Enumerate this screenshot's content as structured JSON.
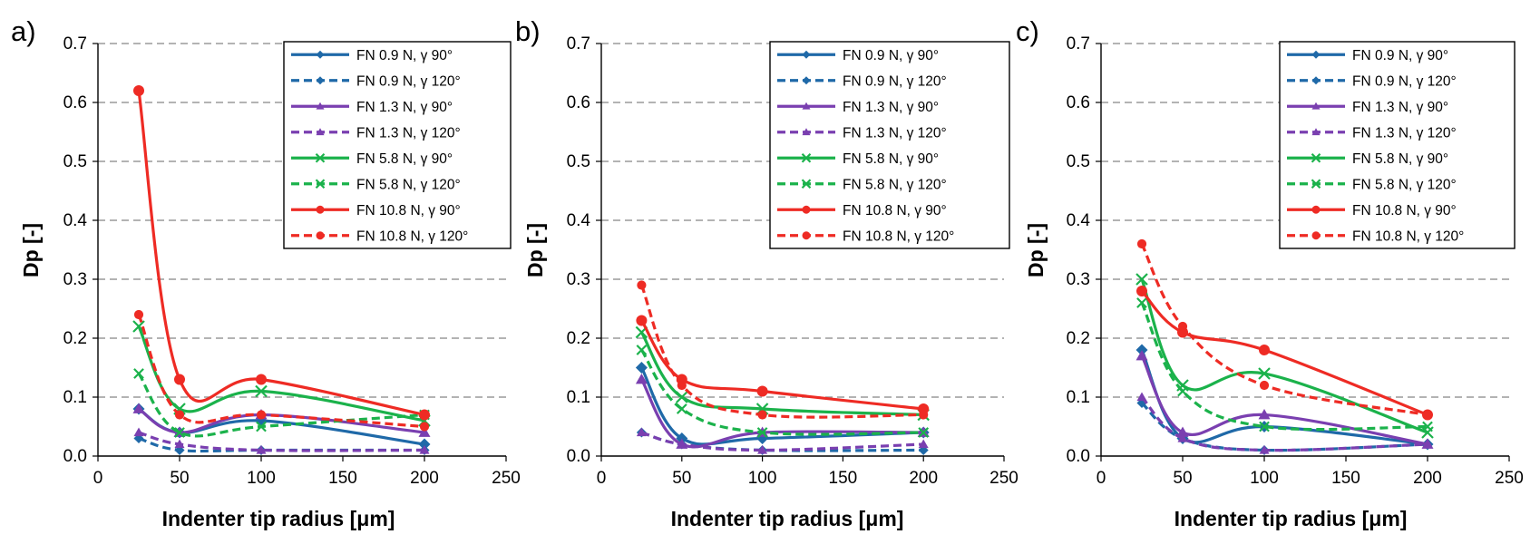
{
  "styles": {
    "FN 0.9 N": {
      "color": "#1f69a8",
      "marker": "diamond"
    },
    "FN 1.3 N": {
      "color": "#7a3fb0",
      "marker": "triangle"
    },
    "FN 5.8 N": {
      "color": "#1bb24b",
      "marker": "x"
    },
    "FN 10.8 N": {
      "color": "#ee2b24",
      "marker": "circle"
    }
  },
  "chart_data": [
    {
      "type": "line",
      "panel_label": "a)",
      "xlabel": "Indenter  tip radius [μm]",
      "ylabel": "Dp [-]",
      "xlim": [
        0,
        250
      ],
      "ylim": [
        0,
        0.7
      ],
      "xticks": [
        "0",
        "50",
        "100",
        "150",
        "200",
        "250"
      ],
      "yticks": [
        "0.0",
        "0.1",
        "0.2",
        "0.3",
        "0.4",
        "0.5",
        "0.6",
        "0.7"
      ],
      "grid": "horizontal dashed",
      "legend_position": "top-right",
      "x": [
        25,
        50,
        100,
        200
      ],
      "series": [
        {
          "name": "FN 0.9 N, γ 90°",
          "force": "FN 0.9 N",
          "dashed": false,
          "values": [
            0.08,
            0.04,
            0.06,
            0.02
          ]
        },
        {
          "name": "FN 0.9 N, γ 120°",
          "force": "FN 0.9 N",
          "dashed": true,
          "values": [
            0.03,
            0.01,
            0.01,
            0.01
          ]
        },
        {
          "name": "FN 1.3 N, γ 90°",
          "force": "FN 1.3 N",
          "dashed": false,
          "values": [
            0.08,
            0.04,
            0.07,
            0.04
          ]
        },
        {
          "name": "FN 1.3 N, γ 120°",
          "force": "FN 1.3 N",
          "dashed": true,
          "values": [
            0.04,
            0.02,
            0.01,
            0.01
          ]
        },
        {
          "name": "FN 5.8 N, γ 90°",
          "force": "FN 5.8 N",
          "dashed": false,
          "values": [
            0.22,
            0.08,
            0.11,
            0.06
          ]
        },
        {
          "name": "FN 5.8 N, γ 120°",
          "force": "FN 5.8 N",
          "dashed": true,
          "values": [
            0.14,
            0.04,
            0.05,
            0.07
          ]
        },
        {
          "name": "FN 10.8 N, γ 90°",
          "force": "FN 10.8 N",
          "dashed": false,
          "values": [
            0.62,
            0.13,
            0.13,
            0.07
          ]
        },
        {
          "name": "FN 10.8 N, γ 120°",
          "force": "FN 10.8 N",
          "dashed": true,
          "values": [
            0.24,
            0.07,
            0.07,
            0.05
          ]
        }
      ]
    },
    {
      "type": "line",
      "panel_label": "b)",
      "xlabel": "Indenter  tip radius [μm]",
      "ylabel": "Dp [-]",
      "xlim": [
        0,
        250
      ],
      "ylim": [
        0,
        0.7
      ],
      "xticks": [
        "0",
        "50",
        "100",
        "150",
        "200",
        "250"
      ],
      "yticks": [
        "0.0",
        "0.1",
        "0.2",
        "0.3",
        "0.4",
        "0.5",
        "0.6",
        "0.7"
      ],
      "grid": "horizontal dashed",
      "legend_position": "top-right",
      "x": [
        25,
        50,
        100,
        200
      ],
      "series": [
        {
          "name": "FN 0.9 N, γ 90°",
          "force": "FN 0.9 N",
          "dashed": false,
          "values": [
            0.15,
            0.03,
            0.03,
            0.04
          ]
        },
        {
          "name": "FN 0.9 N, γ 120°",
          "force": "FN 0.9 N",
          "dashed": true,
          "values": [
            0.04,
            0.02,
            0.01,
            0.01
          ]
        },
        {
          "name": "FN 1.3 N, γ 90°",
          "force": "FN 1.3 N",
          "dashed": false,
          "values": [
            0.13,
            0.02,
            0.04,
            0.04
          ]
        },
        {
          "name": "FN 1.3 N, γ 120°",
          "force": "FN 1.3 N",
          "dashed": true,
          "values": [
            0.04,
            0.02,
            0.01,
            0.02
          ]
        },
        {
          "name": "FN 5.8 N, γ 90°",
          "force": "FN 5.8 N",
          "dashed": false,
          "values": [
            0.21,
            0.1,
            0.08,
            0.07
          ]
        },
        {
          "name": "FN 5.8 N, γ 120°",
          "force": "FN 5.8 N",
          "dashed": true,
          "values": [
            0.18,
            0.08,
            0.04,
            0.04
          ]
        },
        {
          "name": "FN 10.8 N, γ 90°",
          "force": "FN 10.8 N",
          "dashed": false,
          "values": [
            0.23,
            0.13,
            0.11,
            0.08
          ]
        },
        {
          "name": "FN 10.8 N, γ 120°",
          "force": "FN 10.8 N",
          "dashed": true,
          "values": [
            0.29,
            0.12,
            0.07,
            0.07
          ]
        }
      ]
    },
    {
      "type": "line",
      "panel_label": "c)",
      "xlabel": "Indenter  tip radius [μm]",
      "ylabel": "Dp [-]",
      "xlim": [
        0,
        250
      ],
      "ylim": [
        0,
        0.7
      ],
      "xticks": [
        "0",
        "50",
        "100",
        "150",
        "200",
        "250"
      ],
      "yticks": [
        "0.0",
        "0.1",
        "0.2",
        "0.3",
        "0.4",
        "0.5",
        "0.6",
        "0.7"
      ],
      "grid": "horizontal dashed",
      "legend_position": "top-right",
      "x": [
        25,
        50,
        100,
        200
      ],
      "series": [
        {
          "name": "FN 0.9 N, γ 90°",
          "force": "FN 0.9 N",
          "dashed": false,
          "values": [
            0.18,
            0.03,
            0.05,
            0.02
          ]
        },
        {
          "name": "FN 0.9 N, γ 120°",
          "force": "FN 0.9 N",
          "dashed": true,
          "values": [
            0.09,
            0.03,
            0.01,
            0.02
          ]
        },
        {
          "name": "FN 1.3 N, γ 90°",
          "force": "FN 1.3 N",
          "dashed": false,
          "values": [
            0.17,
            0.04,
            0.07,
            0.02
          ]
        },
        {
          "name": "FN 1.3 N, γ 120°",
          "force": "FN 1.3 N",
          "dashed": true,
          "values": [
            0.1,
            0.03,
            0.01,
            0.02
          ]
        },
        {
          "name": "FN 5.8 N, γ 90°",
          "force": "FN 5.8 N",
          "dashed": false,
          "values": [
            0.3,
            0.12,
            0.14,
            0.04
          ]
        },
        {
          "name": "FN 5.8 N, γ 120°",
          "force": "FN 5.8 N",
          "dashed": true,
          "values": [
            0.26,
            0.11,
            0.05,
            0.05
          ]
        },
        {
          "name": "FN 10.8 N, γ 90°",
          "force": "FN 10.8 N",
          "dashed": false,
          "values": [
            0.28,
            0.21,
            0.18,
            0.07
          ]
        },
        {
          "name": "FN 10.8 N, γ 120°",
          "force": "FN 10.8 N",
          "dashed": true,
          "values": [
            0.36,
            0.22,
            0.12,
            0.07
          ]
        }
      ]
    }
  ]
}
